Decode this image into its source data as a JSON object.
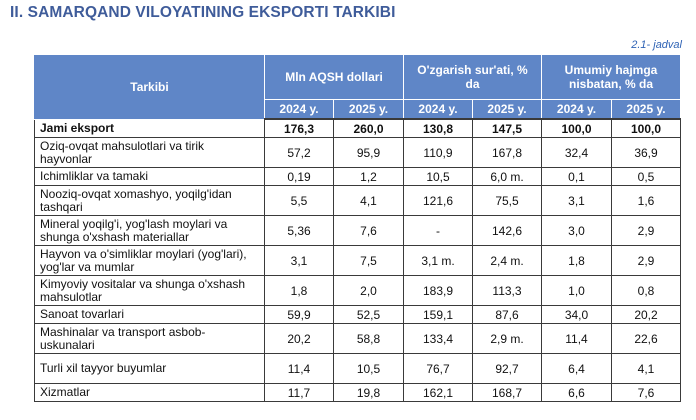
{
  "title": "II. SAMARQAND VILOYATINING EKSPORTI TARKIBI",
  "table_id": "2.1- jadval",
  "headers": {
    "tarkibi": "Tarkibi",
    "group1": "Mln AQSH dollari",
    "group2": "O'zgarish sur'ati, % da",
    "group3": "Umumiy hajmga nisbatan, % da",
    "year1": "2024 y.",
    "year2": "2025 y."
  },
  "rows": [
    {
      "name": "Jami eksport",
      "v": [
        "176,3",
        "260,0",
        "130,8",
        "147,5",
        "100,0",
        "100,0"
      ]
    },
    {
      "name": "Oziq-ovqat mahsulotlari va tirik hayvonlar",
      "v": [
        "57,2",
        "95,9",
        "110,9",
        "167,8",
        "32,4",
        "36,9"
      ]
    },
    {
      "name": "Ichimliklar va tamaki",
      "v": [
        "0,19",
        "1,2",
        "10,5",
        "6,0 m.",
        "0,1",
        "0,5"
      ]
    },
    {
      "name": "Nooziq-ovqat xomashyo, yoqilg'idan tashqari",
      "v": [
        "5,5",
        "4,1",
        "121,6",
        "75,5",
        "3,1",
        "1,6"
      ]
    },
    {
      "name": "Mineral yoqilg'i, yog'lash moylari va shunga o'xshash materiallar",
      "v": [
        "5,36",
        "7,6",
        "-",
        "142,6",
        "3,0",
        "2,9"
      ]
    },
    {
      "name": "Hayvon va o'simliklar moylari (yog'lari), yog'lar va mumlar",
      "v": [
        "3,1",
        "7,5",
        "3,1 m.",
        "2,4 m.",
        "1,8",
        "2,9"
      ]
    },
    {
      "name": "Kimyoviy vositalar va shunga o'xshash mahsulotlar",
      "v": [
        "1,8",
        "2,0",
        "183,9",
        "113,3",
        "1,0",
        "0,8"
      ]
    },
    {
      "name": "Sanoat tovarlari",
      "v": [
        "59,9",
        "52,5",
        "159,1",
        "87,6",
        "34,0",
        "20,2"
      ]
    },
    {
      "name": "Mashinalar va transport asbob-uskunalari",
      "v": [
        "20,2",
        "58,8",
        "133,4",
        "2,9 m.",
        "11,4",
        "22,6"
      ]
    },
    {
      "name": "Turli xil tayyor buyumlar",
      "v": [
        "11,4",
        "10,5",
        "76,7",
        "92,7",
        "6,4",
        "4,1"
      ]
    },
    {
      "name": "Xizmatlar",
      "v": [
        "11,7",
        "19,8",
        "162,1",
        "168,7",
        "6,6",
        "7,6"
      ]
    }
  ]
}
